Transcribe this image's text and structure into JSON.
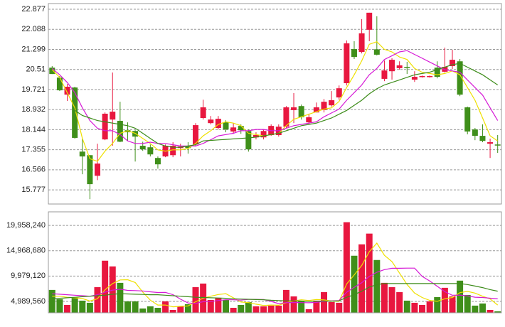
{
  "chart_data": [
    {
      "type": "candlestick",
      "up_color": "#e8173f",
      "down_color": "#3f8f1a",
      "open": [
        20.58,
        20.19,
        19.52,
        19.8,
        17.28,
        17.14,
        16.33,
        17.76,
        18.54,
        18.49,
        18.12,
        18.09,
        17.51,
        17.45,
        17.03,
        17.09,
        17.14,
        17.42,
        17.48,
        17.56,
        18.6,
        18.4,
        18.21,
        18.43,
        18.07,
        18.29,
        18.09,
        17.84,
        17.84,
        17.93,
        17.93,
        18.26,
        18.91,
        19.07,
        18.43,
        18.82,
        18.91,
        19.1,
        19.41,
        19.97,
        21.31,
        21.2,
        22.07,
        21.3,
        20.14,
        20.44,
        20.56,
        20.61,
        20.11,
        20.22,
        20.22,
        20.58,
        20.42,
        20.64,
        20.83,
        19.02,
        18.15,
        17.9,
        17.59,
        17.56
      ],
      "high": [
        20.64,
        20.25,
        19.94,
        19.83,
        17.79,
        17.14,
        17.59,
        18.82,
        20.39,
        19.24,
        18.43,
        18.12,
        17.67,
        17.56,
        17.09,
        17.56,
        17.65,
        17.59,
        17.65,
        18.4,
        19.32,
        18.68,
        18.68,
        18.51,
        18.4,
        18.35,
        18.15,
        18.04,
        18.15,
        18.35,
        18.35,
        19.07,
        19.58,
        19.13,
        18.77,
        19.21,
        19.35,
        19.66,
        19.88,
        21.65,
        21.62,
        22.49,
        22.74,
        22.6,
        20.86,
        20.95,
        20.83,
        20.81,
        20.44,
        20.27,
        20.27,
        20.83,
        21.37,
        21.28,
        20.92,
        19.05,
        18.21,
        18.35,
        17.79,
        17.93
      ],
      "low": [
        20.33,
        19.66,
        19.27,
        17.79,
        16.39,
        15.41,
        16.16,
        17.73,
        17.51,
        17.65,
        17.7,
        16.89,
        17.31,
        17.09,
        16.61,
        17.06,
        17.06,
        17.09,
        17.2,
        17.48,
        18.54,
        18.35,
        18.15,
        18.04,
        17.98,
        17.98,
        17.28,
        17.76,
        17.76,
        17.9,
        17.87,
        18.21,
        18.4,
        18.54,
        18.35,
        18.82,
        18.82,
        19.05,
        19.32,
        19.88,
        20.92,
        21.14,
        21.62,
        21.06,
        20.05,
        20.11,
        20.5,
        20.33,
        20.02,
        20.19,
        20.19,
        20.16,
        20.39,
        20.53,
        19.46,
        17.96,
        17.73,
        17.65,
        17.03,
        17.23
      ],
      "close": [
        20.33,
        19.69,
        19.83,
        17.82,
        17.09,
        16.0,
        16.81,
        18.77,
        18.85,
        17.67,
        18.04,
        17.87,
        17.37,
        17.17,
        16.78,
        17.51,
        17.51,
        17.48,
        17.42,
        18.32,
        19.02,
        18.54,
        18.57,
        18.15,
        18.23,
        18.12,
        17.37,
        17.93,
        18.09,
        18.29,
        18.26,
        19.02,
        19.02,
        18.63,
        18.63,
        19.02,
        19.24,
        19.3,
        19.77,
        21.535,
        21.0,
        21.93,
        22.74,
        21.09,
        20.47,
        20.89,
        20.67,
        20.58,
        20.22,
        20.25,
        20.25,
        20.22,
        20.61,
        20.89,
        19.52,
        18.07,
        17.9,
        17.7,
        17.65,
        17.54
      ],
      "series": [
        {
          "color": "#efe000",
          "values": [
            20.5,
            20.2,
            19.6,
            19.0,
            17.8,
            17.0,
            16.9,
            17.3,
            17.6,
            18.0,
            18.1,
            18.0,
            17.8,
            17.6,
            17.35,
            17.3,
            17.35,
            17.35,
            17.4,
            17.6,
            17.9,
            18.1,
            18.35,
            18.45,
            18.4,
            18.3,
            18.0,
            17.95,
            17.9,
            17.95,
            18.0,
            18.3,
            18.55,
            18.65,
            18.75,
            18.85,
            18.95,
            19.0,
            19.25,
            19.8,
            20.3,
            20.85,
            21.5,
            21.6,
            21.3,
            21.2,
            21.0,
            20.9,
            20.55,
            20.4,
            20.35,
            20.3,
            20.35,
            20.45,
            20.3,
            19.8,
            19.3,
            18.6,
            17.9,
            17.7
          ]
        },
        {
          "color": "#d61ad6",
          "values": [
            20.55,
            20.3,
            20.0,
            19.6,
            19.0,
            18.5,
            18.2,
            18.1,
            18.1,
            17.95,
            17.7,
            17.6,
            17.6,
            17.65,
            17.6,
            17.6,
            17.55,
            17.5,
            17.5,
            17.5,
            17.6,
            17.75,
            17.9,
            17.95,
            18.0,
            18.1,
            18.1,
            18.15,
            18.15,
            18.1,
            18.1,
            18.2,
            18.3,
            18.35,
            18.4,
            18.45,
            18.65,
            18.8,
            18.95,
            19.3,
            19.6,
            19.9,
            20.3,
            20.55,
            20.9,
            21.05,
            21.2,
            21.25,
            21.1,
            20.95,
            20.8,
            20.65,
            20.5,
            20.45,
            20.4,
            20.1,
            19.8,
            19.5,
            19.0,
            18.5
          ]
        },
        {
          "color": "#3d8c1a",
          "values": [
            null,
            null,
            null,
            18.9,
            18.7,
            18.6,
            18.5,
            18.45,
            18.4,
            18.35,
            18.3,
            18.2,
            18.0,
            17.8,
            17.6,
            17.5,
            17.45,
            17.45,
            17.5,
            17.55,
            17.7,
            17.72,
            17.74,
            17.76,
            17.78,
            17.8,
            17.82,
            17.85,
            17.9,
            17.95,
            18.0,
            18.1,
            18.2,
            18.3,
            18.35,
            18.4,
            18.5,
            18.6,
            18.75,
            18.9,
            19.1,
            19.3,
            19.55,
            19.75,
            19.9,
            20.0,
            20.1,
            20.2,
            20.3,
            20.35,
            20.4,
            20.5,
            20.6,
            20.7,
            20.75,
            20.6,
            20.45,
            20.3,
            20.1,
            19.9
          ]
        }
      ],
      "ylim": [
        15.22,
        23.1
      ],
      "yticks": [
        22.877,
        22.088,
        21.299,
        20.51,
        19.721,
        18.932,
        18.144,
        17.355,
        16.566,
        15.777
      ],
      "grid": true
    },
    {
      "type": "bar",
      "values": [
        7240000,
        5410000,
        4290000,
        5690000,
        5130000,
        4710000,
        7800000,
        13000000,
        11880000,
        8640000,
        4990000,
        4990000,
        3580000,
        4010000,
        3720000,
        4990000,
        3300000,
        4010000,
        4430000,
        7800000,
        8500000,
        5270000,
        5690000,
        5270000,
        3720000,
        4290000,
        4850000,
        4010000,
        4010000,
        4150000,
        4150000,
        7240000,
        5970000,
        4990000,
        3440000,
        5130000,
        6820000,
        4850000,
        4710000,
        20590000,
        13980000,
        16230000,
        18340000,
        13140000,
        8640000,
        7800000,
        6820000,
        5130000,
        4710000,
        4290000,
        4990000,
        5830000,
        7660000,
        5970000,
        9070000,
        6250000,
        4150000,
        4570000,
        3300000,
        3020000
      ],
      "series": [
        {
          "color": "#efe000",
          "values": [
            6000000,
            6000000,
            5800000,
            5700000,
            5550000,
            5050000,
            5520000,
            7270000,
            8500000,
            9210000,
            9260000,
            8700000,
            6820000,
            5240000,
            4260000,
            4260000,
            3920000,
            4010000,
            4090000,
            4910000,
            5610000,
            6000000,
            6340000,
            6510000,
            5690000,
            4850000,
            4760000,
            4430000,
            4180000,
            4260000,
            4230000,
            4710000,
            5100000,
            5300000,
            5160000,
            5350000,
            5270000,
            5050000,
            4990000,
            8420000,
            10190000,
            12070000,
            14770000,
            16460000,
            14070000,
            12830000,
            10550000,
            8310000,
            6620000,
            5750000,
            5190000,
            4990000,
            5500000,
            5750000,
            6700000,
            6960000,
            6620000,
            6000000,
            5470000,
            4260000
          ]
        },
        {
          "color": "#d61ad6",
          "values": [
            6500000,
            6400000,
            6300000,
            6200000,
            6100000,
            6000000,
            6300000,
            6800000,
            7200000,
            7380000,
            7150000,
            7110000,
            7040000,
            6870000,
            6730000,
            6760000,
            6310000,
            5410000,
            4670000,
            4580000,
            4930000,
            4960000,
            5170000,
            5300000,
            5300000,
            5230000,
            5380000,
            5380000,
            5340000,
            4980000,
            4540000,
            4740000,
            4770000,
            4740000,
            4710000,
            4790000,
            4990000,
            5080000,
            5150000,
            6790000,
            7770000,
            8670000,
            9910000,
            10720000,
            11240000,
            11510000,
            11510000,
            11540000,
            11540000,
            9910000,
            9010000,
            7970000,
            6900000,
            6180000,
            6230000,
            6070000,
            5810000,
            5750000,
            5610000,
            5480000
          ]
        },
        {
          "color": "#3d8c1a",
          "values": [
            5500000,
            5600000,
            5700000,
            5800000,
            5900000,
            6000000,
            6100000,
            6200000,
            6400000,
            6500000,
            6450000,
            6400000,
            6350000,
            6300000,
            6300000,
            6200000,
            6100000,
            6000000,
            5900000,
            5800000,
            5750000,
            5700000,
            5650000,
            5600000,
            5500000,
            5450000,
            5400000,
            5350000,
            5300000,
            5200000,
            5150000,
            5100000,
            5100000,
            5050000,
            5000000,
            5000000,
            5050000,
            5050000,
            5100000,
            5800000,
            6300000,
            7000000,
            7800000,
            8300000,
            8500000,
            8500000,
            8500000,
            8500000,
            8500000,
            8500000,
            8500000,
            8500000,
            8500000,
            8500000,
            8500000,
            8300000,
            8000000,
            7700000,
            7300000,
            7000000
          ]
        }
      ],
      "ylim": [
        2740000,
        22630000
      ],
      "yticks": [
        {
          "value": 19958240,
          "label": "19,958,240"
        },
        {
          "value": 14968680,
          "label": "14,968,680"
        },
        {
          "value": 9979120,
          "label": "9,979,120"
        },
        {
          "value": 4989560,
          "label": "4,989,560"
        }
      ],
      "grid": true
    }
  ]
}
